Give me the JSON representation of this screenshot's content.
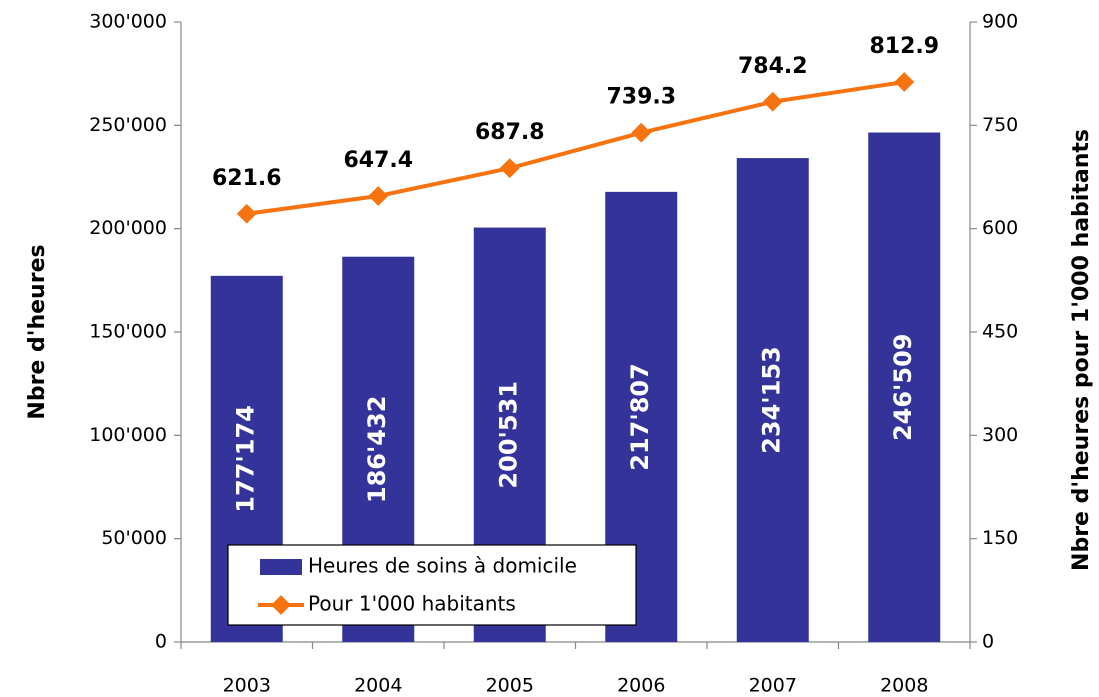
{
  "chart_data": {
    "type": "bar_line",
    "categories": [
      "2003",
      "2004",
      "2005",
      "2006",
      "2007",
      "2008"
    ],
    "series": [
      {
        "name": "Heures de soins à domicile",
        "type": "bar",
        "color": "#333399",
        "axis": "y",
        "values": [
          177174,
          186432,
          200531,
          217807,
          234153,
          246509
        ],
        "value_labels": [
          "177'174",
          "186'432",
          "200'531",
          "217'807",
          "234'153",
          "246'509"
        ]
      },
      {
        "name": "Pour 1'000 habitants",
        "type": "line",
        "color": "#f7730f",
        "axis": "y2",
        "values": [
          621.6,
          647.4,
          687.8,
          739.3,
          784.2,
          812.9
        ]
      }
    ],
    "ylabel": "Nbre d'heures",
    "y2label": "Nbre d'heures pour 1'000 habitants",
    "ylim": [
      0,
      300000
    ],
    "yticks": [
      0,
      {
        "value": 50000,
        "label": "50'000"
      },
      {
        "value": 100000,
        "label": "100'000"
      },
      {
        "value": 150000,
        "label": "150'000"
      },
      {
        "value": 200000,
        "label": "200'000"
      },
      {
        "value": 250000,
        "label": "250'000"
      },
      {
        "value": 300000,
        "label": "300'000"
      }
    ],
    "y2lim": [
      0,
      900
    ],
    "y2ticks": [
      0,
      150,
      300,
      450,
      600,
      750,
      900
    ],
    "grid": false,
    "legend": "lower left"
  }
}
